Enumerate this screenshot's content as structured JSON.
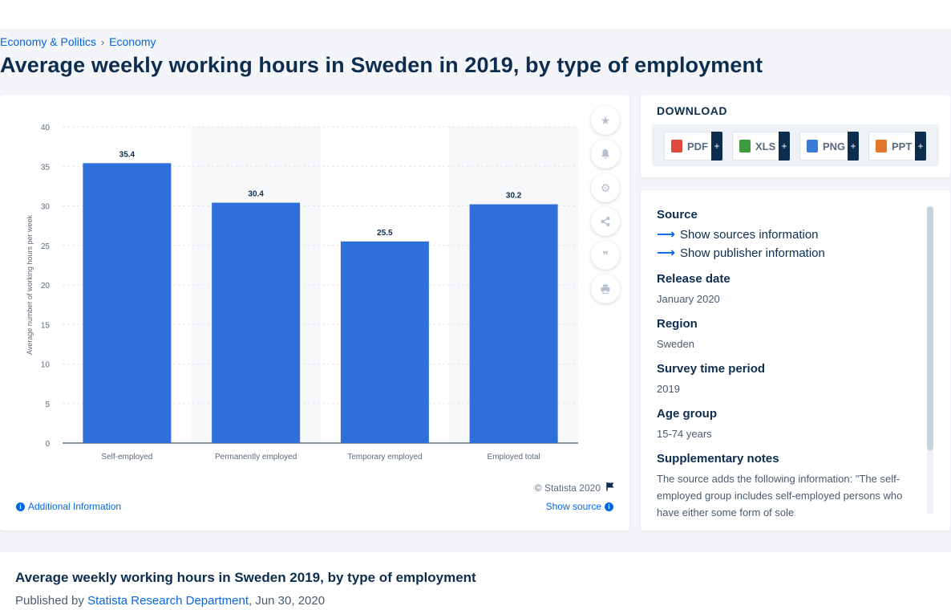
{
  "breadcrumb": {
    "items": [
      "Economy & Politics",
      "Economy"
    ],
    "separator": "›"
  },
  "page_title": "Average weekly working hours in Sweden in 2019, by type of employment",
  "chart": {
    "copyright": "© Statista 2020",
    "additional_info_label": "Additional Information",
    "show_source_label": "Show source"
  },
  "chart_data": {
    "type": "bar",
    "title": "",
    "categories": [
      "Self-employed",
      "Permanently employed",
      "Temporary employed",
      "Employed total"
    ],
    "values": [
      35.4,
      30.4,
      25.5,
      30.2
    ],
    "value_labels": [
      "35.4",
      "30.4",
      "25.5",
      "30.2"
    ],
    "ylabel": "Average number of working hours per week",
    "xlabel": "",
    "ylim": [
      0,
      40
    ],
    "yticks": [
      "0",
      "5",
      "10",
      "15",
      "20",
      "25",
      "30",
      "35",
      "40"
    ],
    "grid": true,
    "bar_color": "#2f6fdb"
  },
  "download": {
    "title": "DOWNLOAD",
    "buttons": [
      {
        "label": "PDF",
        "icon": "pdf-file-icon",
        "color": "#e04a3a"
      },
      {
        "label": "XLS",
        "icon": "xls-file-icon",
        "color": "#3d9b3d"
      },
      {
        "label": "PNG",
        "icon": "png-file-icon",
        "color": "#3a7ad9"
      },
      {
        "label": "PPT",
        "icon": "ppt-file-icon",
        "color": "#e0772a"
      }
    ],
    "plus": "+"
  },
  "meta": {
    "source_label": "Source",
    "show_sources": "Show sources information",
    "show_publisher": "Show publisher information",
    "release_date_label": "Release date",
    "release_date": "January 2020",
    "region_label": "Region",
    "region": "Sweden",
    "survey_label": "Survey time period",
    "survey": "2019",
    "age_label": "Age group",
    "age": "15-74 years",
    "notes_label": "Supplementary notes",
    "notes": "The source adds the following information: \"The self-employed group includes self-employed persons who have either some form of sole"
  },
  "bottom": {
    "title": "Average weekly working hours in Sweden 2019, by type of employment",
    "published_prefix": "Published by",
    "author": "Statista Research Department",
    "date": ", Jun 30, 2020"
  }
}
